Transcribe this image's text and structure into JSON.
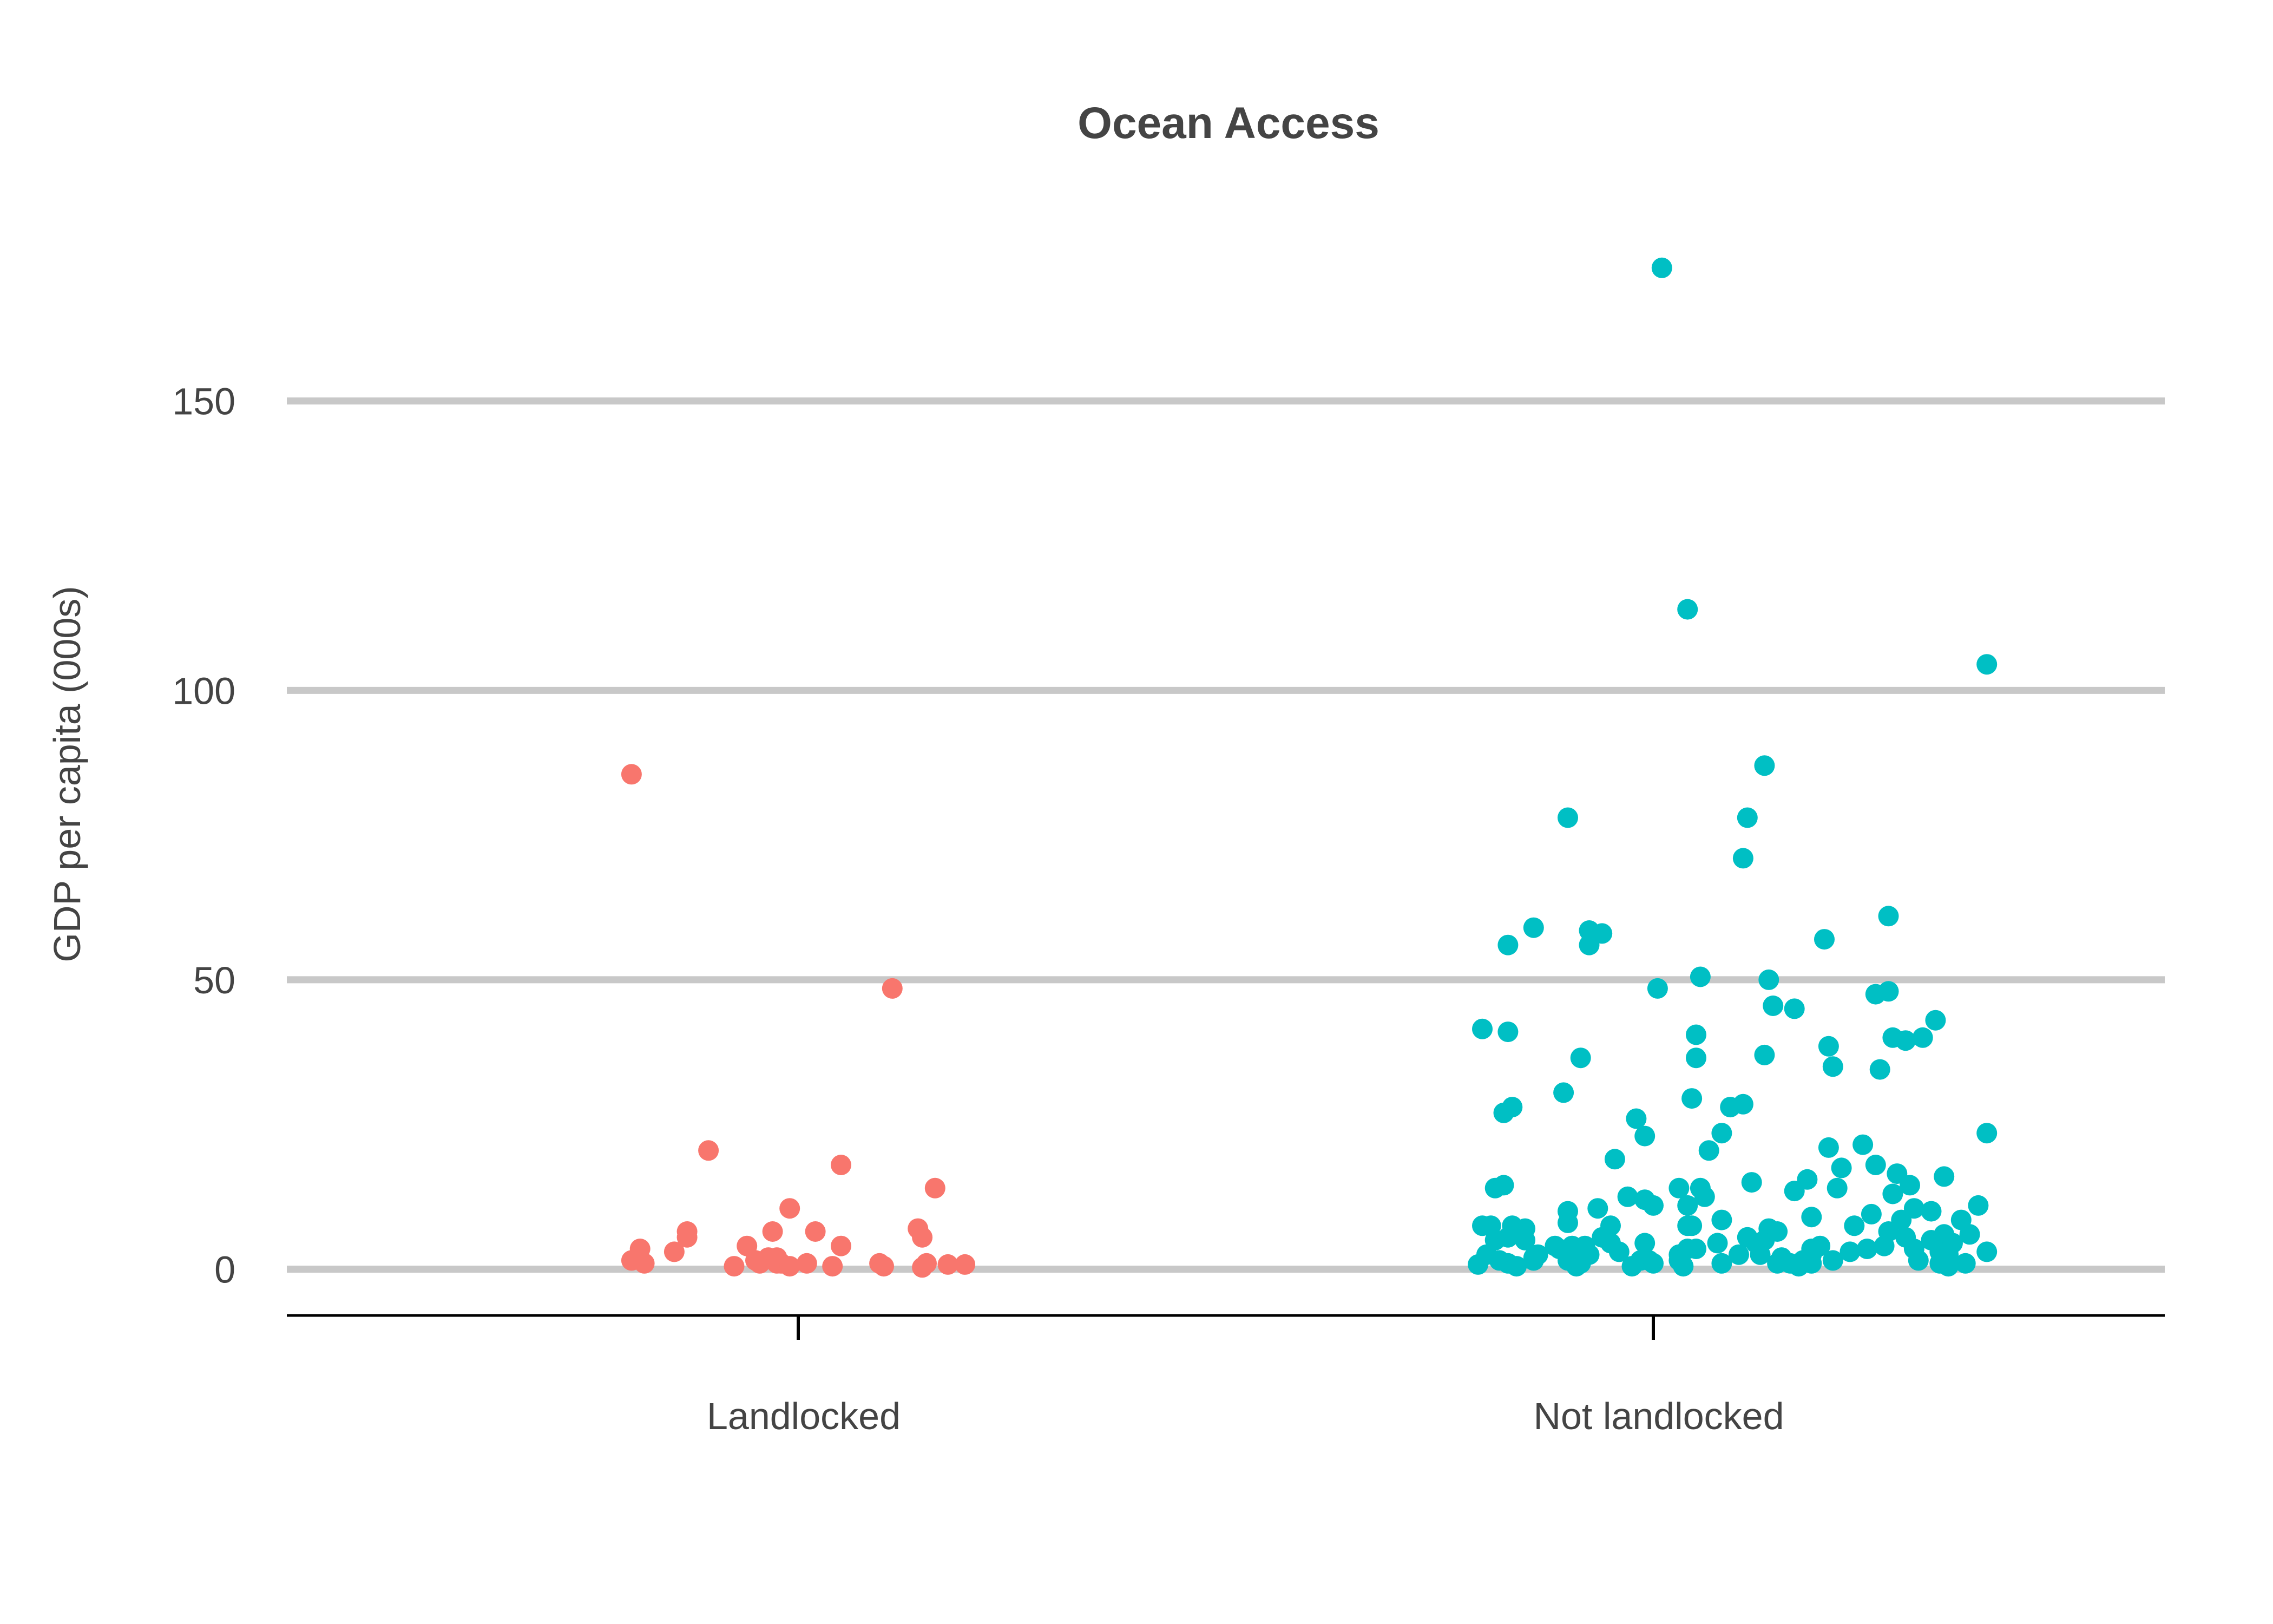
{
  "chart_data": {
    "type": "scatter",
    "title": "Ocean Access",
    "xlabel": "",
    "ylabel": "GDP per capita (000s)",
    "ylim": [
      -8,
      180
    ],
    "y_ticks": [
      0,
      50,
      100,
      150
    ],
    "categories": [
      "Landlocked",
      "Not landlocked"
    ],
    "grid": true,
    "legend": "none",
    "series": [
      {
        "name": "Landlocked",
        "color": "#f8766d",
        "points": [
          [
            -0.39,
            85.5
          ],
          [
            -0.39,
            1.5
          ],
          [
            -0.37,
            3.5
          ],
          [
            -0.36,
            1.0
          ],
          [
            -0.29,
            3.0
          ],
          [
            -0.26,
            5.5
          ],
          [
            -0.26,
            6.5
          ],
          [
            -0.21,
            20.5
          ],
          [
            -0.15,
            0.5
          ],
          [
            -0.12,
            4.0
          ],
          [
            -0.1,
            1.5
          ],
          [
            -0.09,
            1.0
          ],
          [
            -0.07,
            2.0
          ],
          [
            -0.06,
            6.5
          ],
          [
            -0.05,
            1.0
          ],
          [
            -0.05,
            2.0
          ],
          [
            -0.04,
            1.0
          ],
          [
            -0.02,
            10.5
          ],
          [
            -0.02,
            0.5
          ],
          [
            0.02,
            1.0
          ],
          [
            0.04,
            6.5
          ],
          [
            0.08,
            0.5
          ],
          [
            0.1,
            4.0
          ],
          [
            0.1,
            18.0
          ],
          [
            0.19,
            1.0
          ],
          [
            0.2,
            0.5
          ],
          [
            0.22,
            48.5
          ],
          [
            0.28,
            7.0
          ],
          [
            0.29,
            5.5
          ],
          [
            0.29,
            0.3
          ],
          [
            0.3,
            1.0
          ],
          [
            0.32,
            14.0
          ],
          [
            0.35,
            0.8
          ],
          [
            0.39,
            0.8
          ]
        ]
      },
      {
        "name": "Not landlocked",
        "color": "#00bfc4",
        "points": [
          [
            -0.41,
            0.8
          ],
          [
            -0.4,
            7.5
          ],
          [
            -0.4,
            41.5
          ],
          [
            -0.39,
            2.5
          ],
          [
            -0.38,
            7.5
          ],
          [
            -0.37,
            5.0
          ],
          [
            -0.37,
            14.0
          ],
          [
            -0.36,
            1.5
          ],
          [
            -0.35,
            27.0
          ],
          [
            -0.35,
            14.5
          ],
          [
            -0.34,
            56.0
          ],
          [
            -0.34,
            5.5
          ],
          [
            -0.34,
            1.0
          ],
          [
            -0.34,
            41.0
          ],
          [
            -0.33,
            28.0
          ],
          [
            -0.33,
            7.5
          ],
          [
            -0.32,
            0.5
          ],
          [
            -0.3,
            5.0
          ],
          [
            -0.3,
            7.0
          ],
          [
            -0.28,
            59.0
          ],
          [
            -0.28,
            2.0
          ],
          [
            -0.28,
            1.5
          ],
          [
            -0.27,
            2.5
          ],
          [
            -0.23,
            4.0
          ],
          [
            -0.22,
            3.5
          ],
          [
            -0.21,
            30.5
          ],
          [
            -0.2,
            1.5
          ],
          [
            -0.2,
            8.0
          ],
          [
            -0.2,
            10.0
          ],
          [
            -0.2,
            78.0
          ],
          [
            -0.19,
            4.0
          ],
          [
            -0.18,
            0.5
          ],
          [
            -0.18,
            2.5
          ],
          [
            -0.17,
            1.0
          ],
          [
            -0.17,
            36.5
          ],
          [
            -0.16,
            4.0
          ],
          [
            -0.15,
            58.5
          ],
          [
            -0.15,
            56.0
          ],
          [
            -0.15,
            2.5
          ],
          [
            -0.13,
            10.5
          ],
          [
            -0.12,
            5.5
          ],
          [
            -0.12,
            58.0
          ],
          [
            -0.1,
            4.5
          ],
          [
            -0.1,
            7.5
          ],
          [
            -0.09,
            19.0
          ],
          [
            -0.08,
            3.0
          ],
          [
            -0.06,
            12.5
          ],
          [
            -0.05,
            0.5
          ],
          [
            -0.04,
            26.0
          ],
          [
            -0.03,
            1.5
          ],
          [
            -0.02,
            4.5
          ],
          [
            -0.02,
            23.0
          ],
          [
            -0.02,
            12.0
          ],
          [
            -0.01,
            1.5
          ],
          [
            0.0,
            11.0
          ],
          [
            0.0,
            1.0
          ],
          [
            0.01,
            48.5
          ],
          [
            0.02,
            173.0
          ],
          [
            0.06,
            1.5
          ],
          [
            0.06,
            2.5
          ],
          [
            0.06,
            14.0
          ],
          [
            0.07,
            0.5
          ],
          [
            0.08,
            3.5
          ],
          [
            0.08,
            114.0
          ],
          [
            0.08,
            7.5
          ],
          [
            0.08,
            11.0
          ],
          [
            0.09,
            7.5
          ],
          [
            0.09,
            29.5
          ],
          [
            0.1,
            36.5
          ],
          [
            0.1,
            40.5
          ],
          [
            0.1,
            3.5
          ],
          [
            0.11,
            50.5
          ],
          [
            0.11,
            14.0
          ],
          [
            0.12,
            12.5
          ],
          [
            0.13,
            20.5
          ],
          [
            0.15,
            4.5
          ],
          [
            0.16,
            1.0
          ],
          [
            0.16,
            23.5
          ],
          [
            0.16,
            8.5
          ],
          [
            0.18,
            28.0
          ],
          [
            0.2,
            2.5
          ],
          [
            0.21,
            28.5
          ],
          [
            0.21,
            71.0
          ],
          [
            0.22,
            5.5
          ],
          [
            0.22,
            78.0
          ],
          [
            0.23,
            15.0
          ],
          [
            0.24,
            4.5
          ],
          [
            0.25,
            2.5
          ],
          [
            0.26,
            5.0
          ],
          [
            0.26,
            87.0
          ],
          [
            0.26,
            37.0
          ],
          [
            0.27,
            50.0
          ],
          [
            0.27,
            7.0
          ],
          [
            0.28,
            45.5
          ],
          [
            0.29,
            1.0
          ],
          [
            0.29,
            6.5
          ],
          [
            0.3,
            2.0
          ],
          [
            0.32,
            1.0
          ],
          [
            0.33,
            45.0
          ],
          [
            0.33,
            13.5
          ],
          [
            0.34,
            0.5
          ],
          [
            0.35,
            1.5
          ],
          [
            0.36,
            15.5
          ],
          [
            0.37,
            9.0
          ],
          [
            0.37,
            1.0
          ],
          [
            0.37,
            2.5
          ],
          [
            0.37,
            3.5
          ],
          [
            0.39,
            4.0
          ],
          [
            0.4,
            57.0
          ],
          [
            0.41,
            38.5
          ],
          [
            0.41,
            21.0
          ],
          [
            0.42,
            35.0
          ],
          [
            0.42,
            1.5
          ],
          [
            0.43,
            14.0
          ],
          [
            0.44,
            17.5
          ],
          [
            0.46,
            3.0
          ],
          [
            0.47,
            7.5
          ],
          [
            0.49,
            21.5
          ],
          [
            0.5,
            3.5
          ],
          [
            0.51,
            9.5
          ],
          [
            0.52,
            18.0
          ],
          [
            0.52,
            47.5
          ],
          [
            0.53,
            34.5
          ],
          [
            0.54,
            4.0
          ],
          [
            0.55,
            6.5
          ],
          [
            0.55,
            48.0
          ],
          [
            0.55,
            61.0
          ],
          [
            0.56,
            40.0
          ],
          [
            0.56,
            13.0
          ],
          [
            0.57,
            16.5
          ],
          [
            0.58,
            8.5
          ],
          [
            0.59,
            39.5
          ],
          [
            0.59,
            5.5
          ],
          [
            0.6,
            14.5
          ],
          [
            0.61,
            10.5
          ],
          [
            0.61,
            3.5
          ],
          [
            0.62,
            1.5
          ],
          [
            0.63,
            40.0
          ],
          [
            0.65,
            10.0
          ],
          [
            0.65,
            5.0
          ],
          [
            0.66,
            43.0
          ],
          [
            0.67,
            1.0
          ],
          [
            0.67,
            3.0
          ],
          [
            0.68,
            6.0
          ],
          [
            0.68,
            16.0
          ],
          [
            0.69,
            0.5
          ],
          [
            0.69,
            2.5
          ],
          [
            0.7,
            4.5
          ],
          [
            0.72,
            8.5
          ],
          [
            0.73,
            1.0
          ],
          [
            0.74,
            6.0
          ],
          [
            0.76,
            11.0
          ],
          [
            0.78,
            104.5
          ],
          [
            0.78,
            23.5
          ],
          [
            0.78,
            3.0
          ]
        ]
      }
    ]
  }
}
